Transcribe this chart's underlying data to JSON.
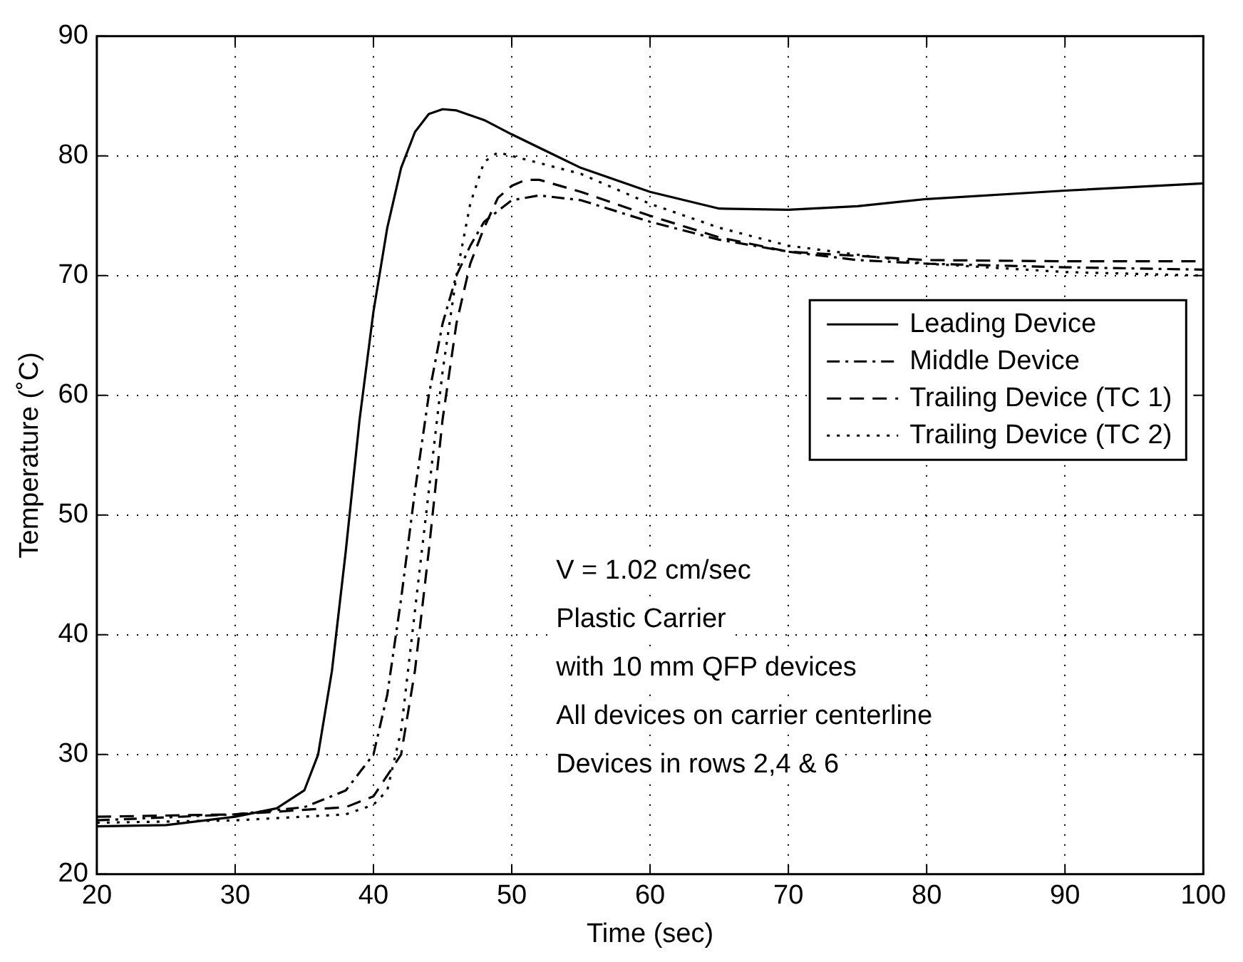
{
  "chart_data": {
    "type": "line",
    "xlabel": "Time (sec)",
    "ylabel": "Temperature (˚C)",
    "xlim": [
      20,
      100
    ],
    "ylim": [
      20,
      90
    ],
    "xticks": [
      20,
      30,
      40,
      50,
      60,
      70,
      80,
      90,
      100
    ],
    "yticks": [
      20,
      30,
      40,
      50,
      60,
      70,
      80,
      90
    ],
    "grid": true,
    "legend": "right",
    "marker": "none",
    "series": [
      {
        "name": "Leading Device",
        "color": "#000000",
        "line_style": "solid",
        "x": [
          20,
          25,
          30,
          33,
          35,
          36,
          37,
          38,
          39,
          40,
          41,
          42,
          43,
          44,
          45,
          46,
          48,
          50,
          55,
          60,
          65,
          70,
          75,
          80,
          90,
          100
        ],
        "values": [
          24,
          24.1,
          24.8,
          25.5,
          27,
          30,
          37,
          47,
          58,
          67,
          74,
          79,
          82,
          83.5,
          83.9,
          83.8,
          83,
          81.8,
          79,
          77,
          75.6,
          75.5,
          75.8,
          76.4,
          77.1,
          77.7
        ]
      },
      {
        "name": "Middle Device",
        "color": "#000000",
        "line_style": "dashdot",
        "x": [
          20,
          30,
          35,
          38,
          40,
          41,
          42,
          43,
          44,
          45,
          46,
          47,
          48,
          50,
          52,
          55,
          60,
          65,
          70,
          75,
          80,
          90,
          100
        ],
        "values": [
          24.5,
          25,
          25.6,
          27,
          30,
          35,
          43,
          52,
          60,
          66,
          70,
          72.5,
          74.5,
          76.3,
          76.7,
          76.3,
          74.5,
          73,
          72,
          71.3,
          71,
          70.7,
          70.5
        ]
      },
      {
        "name": "Trailing Device (TC 1)",
        "color": "#000000",
        "line_style": "dashed",
        "x": [
          20,
          30,
          38,
          40,
          42,
          43,
          44,
          45,
          46,
          47,
          48,
          49,
          50,
          51,
          52,
          55,
          60,
          65,
          70,
          80,
          90,
          100
        ],
        "values": [
          24.8,
          25,
          25.6,
          26.5,
          30,
          37,
          47,
          58,
          66,
          71,
          74,
          76.5,
          77.5,
          78,
          78,
          77,
          75,
          73.2,
          72,
          71.3,
          71.2,
          71.2
        ]
      },
      {
        "name": "Trailing Device (TC 2)",
        "color": "#000000",
        "line_style": "dotted",
        "x": [
          20,
          30,
          38,
          40,
          41,
          42,
          43,
          44,
          45,
          46,
          47,
          48,
          49,
          50,
          55,
          60,
          65,
          70,
          80,
          90,
          100
        ],
        "values": [
          24.3,
          24.5,
          25,
          25.8,
          27,
          32,
          42,
          52,
          62,
          70,
          76,
          79.5,
          80.3,
          80,
          78.5,
          76,
          74,
          72.5,
          71,
          70.3,
          70
        ]
      }
    ],
    "annotations": [
      "V = 1.02 cm/sec",
      "Plastic Carrier",
      "with 10 mm QFP devices",
      "All devices on carrier centerline",
      "Devices in rows 2,4 & 6"
    ]
  }
}
